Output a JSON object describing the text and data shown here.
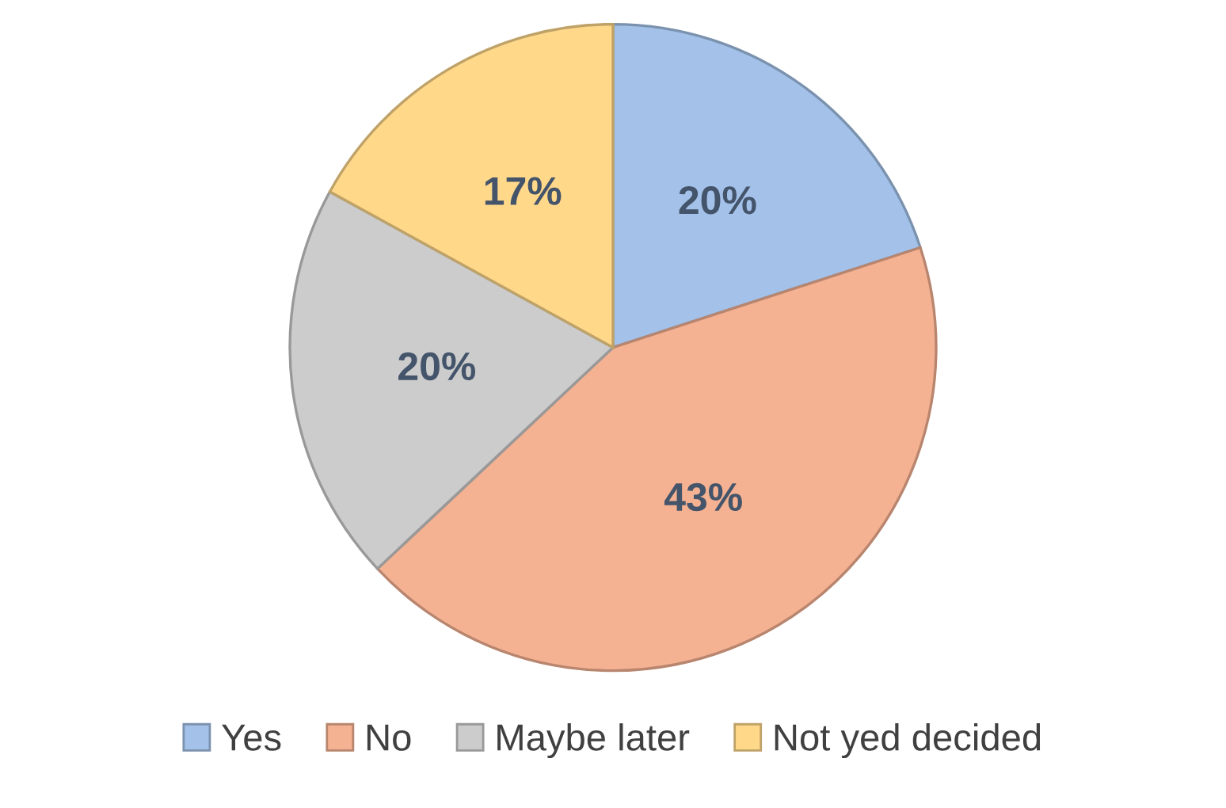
{
  "chart_data": {
    "type": "pie",
    "categories": [
      "Yes",
      "No",
      "Maybe later",
      "Not yed decided"
    ],
    "values": [
      20,
      43,
      20,
      17
    ],
    "colors": [
      "#a4c2e9",
      "#f5b293",
      "#cccccc",
      "#ffd88a"
    ],
    "value_labels": [
      "20%",
      "43%",
      "20%",
      "17%"
    ],
    "legend": "bottom"
  }
}
